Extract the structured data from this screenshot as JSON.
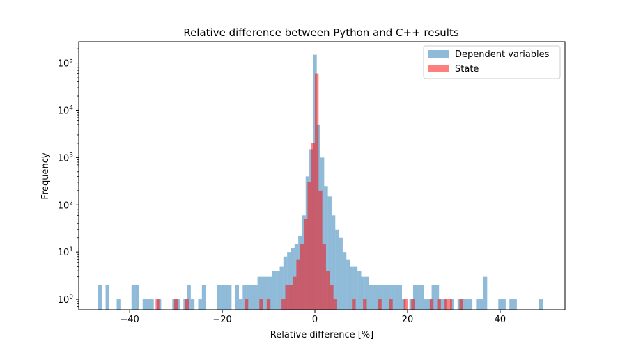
{
  "chart_data": {
    "type": "bar",
    "title": "Relative difference between Python and C++ results",
    "xlabel": "Relative difference [%]",
    "ylabel": "Frequency",
    "xlim": [
      -51,
      54
    ],
    "ylim_log10": [
      -0.22,
      5.45
    ],
    "y_scale": "log",
    "bin_width": 0.8,
    "x_ticks": [
      -40,
      -20,
      0,
      20,
      40
    ],
    "x_tick_labels": [
      "−40",
      "−20",
      "0",
      "20",
      "40"
    ],
    "y_ticks": [
      {
        "base": "10",
        "exp": "0",
        "value": 1
      },
      {
        "base": "10",
        "exp": "1",
        "value": 10
      },
      {
        "base": "10",
        "exp": "2",
        "value": 100
      },
      {
        "base": "10",
        "exp": "3",
        "value": 1000
      },
      {
        "base": "10",
        "exp": "4",
        "value": 10000
      },
      {
        "base": "10",
        "exp": "5",
        "value": 100000
      }
    ],
    "legend_position": "top-right",
    "grid": false,
    "series": [
      {
        "name": "Dependent variables",
        "color": "#1f77b4",
        "opacity": 0.5,
        "bins": [
          [
            -46.8,
            2
          ],
          [
            -45.2,
            2
          ],
          [
            -42.8,
            1
          ],
          [
            -39.6,
            2
          ],
          [
            -38.8,
            2
          ],
          [
            -37.2,
            1
          ],
          [
            -36.4,
            1
          ],
          [
            -35.6,
            1
          ],
          [
            -34.0,
            1
          ],
          [
            -30.8,
            1
          ],
          [
            -30.0,
            1
          ],
          [
            -28.4,
            1
          ],
          [
            -27.6,
            2
          ],
          [
            -26.8,
            1
          ],
          [
            -25.2,
            1
          ],
          [
            -24.4,
            2
          ],
          [
            -21.2,
            2
          ],
          [
            -20.4,
            2
          ],
          [
            -19.6,
            2
          ],
          [
            -18.8,
            2
          ],
          [
            -17.2,
            2
          ],
          [
            -16.4,
            1
          ],
          [
            -15.6,
            2
          ],
          [
            -14.8,
            2
          ],
          [
            -14.0,
            2
          ],
          [
            -13.2,
            2
          ],
          [
            -12.4,
            3
          ],
          [
            -11.6,
            3
          ],
          [
            -10.8,
            3
          ],
          [
            -10.0,
            3
          ],
          [
            -9.2,
            4
          ],
          [
            -8.4,
            4
          ],
          [
            -7.6,
            5
          ],
          [
            -6.8,
            8
          ],
          [
            -6.0,
            10
          ],
          [
            -5.2,
            12
          ],
          [
            -4.4,
            15
          ],
          [
            -3.6,
            22
          ],
          [
            -2.8,
            60
          ],
          [
            -2.0,
            400
          ],
          [
            -1.2,
            1500
          ],
          [
            -0.4,
            150000
          ],
          [
            0.4,
            5000
          ],
          [
            1.2,
            1000
          ],
          [
            2.0,
            250
          ],
          [
            2.8,
            150
          ],
          [
            3.6,
            60
          ],
          [
            4.4,
            30
          ],
          [
            5.2,
            20
          ],
          [
            6.0,
            10
          ],
          [
            6.8,
            7
          ],
          [
            7.6,
            5
          ],
          [
            8.4,
            5
          ],
          [
            9.2,
            4
          ],
          [
            10.0,
            3
          ],
          [
            10.8,
            3
          ],
          [
            11.6,
            2
          ],
          [
            12.4,
            2
          ],
          [
            13.2,
            2
          ],
          [
            14.0,
            2
          ],
          [
            14.8,
            2
          ],
          [
            15.6,
            2
          ],
          [
            16.4,
            2
          ],
          [
            17.2,
            2
          ],
          [
            18.0,
            2
          ],
          [
            18.8,
            1
          ],
          [
            20.4,
            1
          ],
          [
            21.2,
            2
          ],
          [
            22.0,
            2
          ],
          [
            22.8,
            2
          ],
          [
            23.6,
            1
          ],
          [
            24.4,
            1
          ],
          [
            25.2,
            2
          ],
          [
            26.0,
            2
          ],
          [
            26.8,
            1
          ],
          [
            27.6,
            1
          ],
          [
            29.2,
            1
          ],
          [
            30.8,
            1
          ],
          [
            31.6,
            1
          ],
          [
            32.4,
            1
          ],
          [
            33.2,
            1
          ],
          [
            34.8,
            1
          ],
          [
            35.6,
            1
          ],
          [
            36.4,
            3
          ],
          [
            39.6,
            1
          ],
          [
            40.4,
            1
          ],
          [
            42.0,
            1
          ],
          [
            42.8,
            1
          ],
          [
            48.4,
            1
          ]
        ]
      },
      {
        "name": "State",
        "color": "#ff0000",
        "opacity": 0.5,
        "bins": [
          [
            -34.4,
            1
          ],
          [
            -30.4,
            1
          ],
          [
            -28.0,
            1
          ],
          [
            -15.2,
            1
          ],
          [
            -12.0,
            1
          ],
          [
            -10.4,
            1
          ],
          [
            -7.2,
            1
          ],
          [
            -6.4,
            2
          ],
          [
            -5.6,
            2
          ],
          [
            -4.8,
            3
          ],
          [
            -4.0,
            7
          ],
          [
            -3.2,
            15
          ],
          [
            -2.4,
            50
          ],
          [
            -1.6,
            300
          ],
          [
            -0.8,
            2000
          ],
          [
            0.0,
            60000
          ],
          [
            0.8,
            200
          ],
          [
            1.6,
            15
          ],
          [
            2.4,
            4
          ],
          [
            3.2,
            2
          ],
          [
            4.0,
            1
          ],
          [
            8.0,
            1
          ],
          [
            10.4,
            1
          ],
          [
            13.6,
            1
          ],
          [
            16.0,
            1
          ],
          [
            19.2,
            1
          ],
          [
            20.8,
            1
          ],
          [
            24.8,
            1
          ],
          [
            26.4,
            1
          ],
          [
            28.0,
            1
          ],
          [
            28.8,
            1
          ],
          [
            31.2,
            1
          ]
        ]
      }
    ]
  }
}
